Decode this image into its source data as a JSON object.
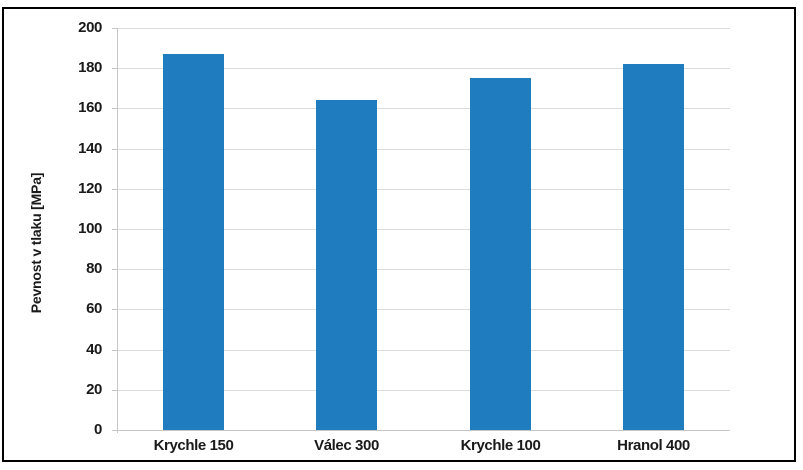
{
  "figure": {
    "kind": "framed scientific bar chart"
  },
  "chart_data": {
    "type": "bar",
    "categories": [
      "Krychle 150",
      "Válec 300",
      "Krychle 100",
      "Hranol 400"
    ],
    "values": [
      187,
      164,
      175,
      182
    ],
    "title": "",
    "xlabel": "",
    "ylabel": "Pevnost v tlaku [MPa]",
    "ylim": [
      0,
      200
    ],
    "ytick_step": 20,
    "yticks": [
      0,
      20,
      40,
      60,
      80,
      100,
      120,
      140,
      160,
      180,
      200
    ],
    "grid": "horizontal",
    "legend": "none"
  },
  "colors": {
    "bar": "#1F7CBE",
    "gridline": "#DCDCDC",
    "axis_line": "#C6C6C6",
    "tick_mark": "#C6C6C6",
    "text": "#1A1A1A",
    "frame_border": "#000000",
    "background": "#FFFFFF"
  }
}
